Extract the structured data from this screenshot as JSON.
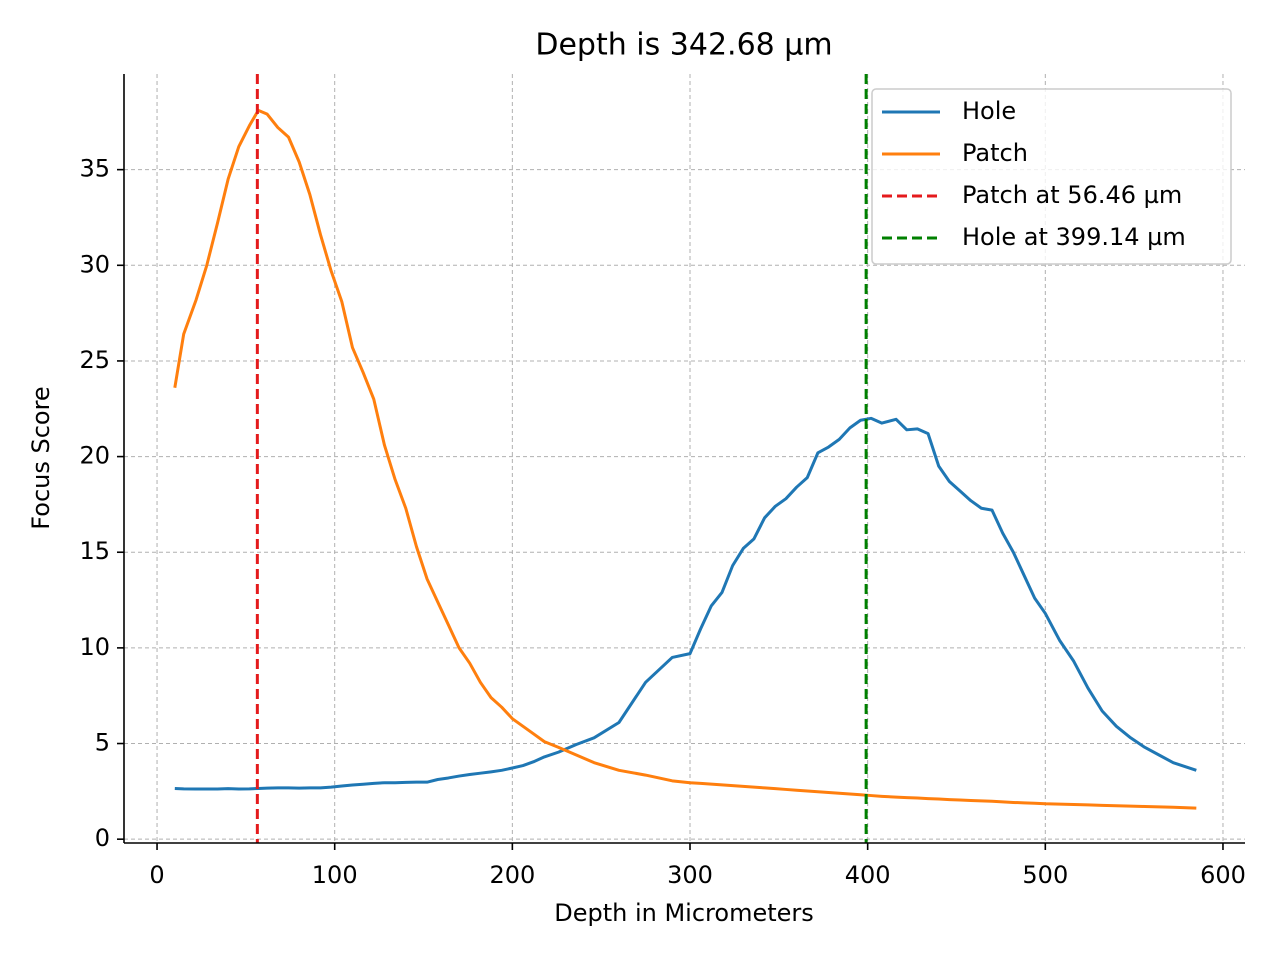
{
  "chart_data": {
    "type": "line",
    "title": "Depth is 342.68 µm",
    "xlabel": "Depth in Micrometers",
    "ylabel": "Focus Score",
    "x": [
      10,
      15,
      22,
      28,
      34,
      40,
      46,
      52,
      57,
      62,
      68,
      74,
      80,
      86,
      92,
      98,
      104,
      110,
      116,
      122,
      128,
      134,
      140,
      146,
      152,
      158,
      164,
      170,
      176,
      182,
      188,
      194,
      200,
      206,
      212,
      218,
      226,
      236,
      246,
      260,
      275,
      290,
      300,
      306,
      312,
      318,
      324,
      330,
      336,
      342,
      348,
      354,
      360,
      366,
      372,
      378,
      384,
      390,
      396,
      402,
      408,
      416,
      422,
      428,
      434,
      440,
      446,
      452,
      458,
      464,
      470,
      476,
      482,
      488,
      494,
      500,
      508,
      516,
      524,
      532,
      540,
      548,
      556,
      564,
      572,
      585
    ],
    "series": [
      {
        "name": "Hole",
        "color": "#1f77b4",
        "values": [
          2.65,
          2.63,
          2.62,
          2.62,
          2.62,
          2.64,
          2.62,
          2.63,
          2.65,
          2.67,
          2.68,
          2.68,
          2.67,
          2.68,
          2.68,
          2.72,
          2.78,
          2.83,
          2.87,
          2.92,
          2.95,
          2.95,
          2.97,
          2.98,
          2.98,
          3.12,
          3.2,
          3.3,
          3.38,
          3.45,
          3.52,
          3.6,
          3.72,
          3.85,
          4.05,
          4.3,
          4.55,
          4.95,
          5.3,
          6.1,
          8.2,
          9.5,
          9.7,
          11.0,
          12.2,
          12.9,
          14.3,
          15.2,
          15.7,
          16.8,
          17.4,
          17.8,
          18.4,
          18.9,
          20.2,
          20.5,
          20.9,
          21.5,
          21.9,
          22.0,
          21.75,
          21.95,
          21.4,
          21.45,
          21.2,
          19.5,
          18.7,
          18.2,
          17.7,
          17.3,
          17.2,
          16.0,
          15.0,
          13.8,
          12.6,
          11.8,
          10.4,
          9.3,
          7.9,
          6.7,
          5.9,
          5.3,
          4.8,
          4.4,
          4.0,
          3.6
        ]
      },
      {
        "name": "Patch",
        "color": "#ff7f0e",
        "values": [
          23.6,
          26.4,
          28.2,
          30.0,
          32.2,
          34.5,
          36.2,
          37.3,
          38.1,
          37.9,
          37.2,
          36.7,
          35.4,
          33.7,
          31.6,
          29.7,
          28.1,
          25.7,
          24.4,
          23.0,
          20.6,
          18.8,
          17.3,
          15.3,
          13.6,
          12.4,
          11.2,
          10.0,
          9.2,
          8.2,
          7.4,
          6.9,
          6.3,
          5.9,
          5.5,
          5.1,
          4.8,
          4.4,
          4.0,
          3.6,
          3.35,
          3.05,
          2.95,
          2.92,
          2.88,
          2.84,
          2.8,
          2.76,
          2.72,
          2.68,
          2.64,
          2.6,
          2.56,
          2.52,
          2.48,
          2.44,
          2.4,
          2.36,
          2.32,
          2.28,
          2.24,
          2.2,
          2.17,
          2.15,
          2.12,
          2.1,
          2.07,
          2.05,
          2.02,
          2.0,
          1.98,
          1.95,
          1.92,
          1.9,
          1.88,
          1.85,
          1.83,
          1.81,
          1.79,
          1.77,
          1.75,
          1.73,
          1.71,
          1.69,
          1.67,
          1.62
        ]
      }
    ],
    "vlines": [
      {
        "name": "Patch at 56.46 µm",
        "color": "#e41a1c",
        "x": 56.46
      },
      {
        "name": "Hole at 399.14 µm",
        "color": "#008000",
        "x": 399.14
      }
    ],
    "xlim": [
      -18.6,
      612.4
    ],
    "ylim": [
      -0.2,
      40
    ],
    "xticks": [
      0,
      100,
      200,
      300,
      400,
      500,
      600
    ],
    "yticks": [
      0,
      5,
      10,
      15,
      20,
      25,
      30,
      35
    ],
    "grid": true,
    "legend": "upper right"
  }
}
